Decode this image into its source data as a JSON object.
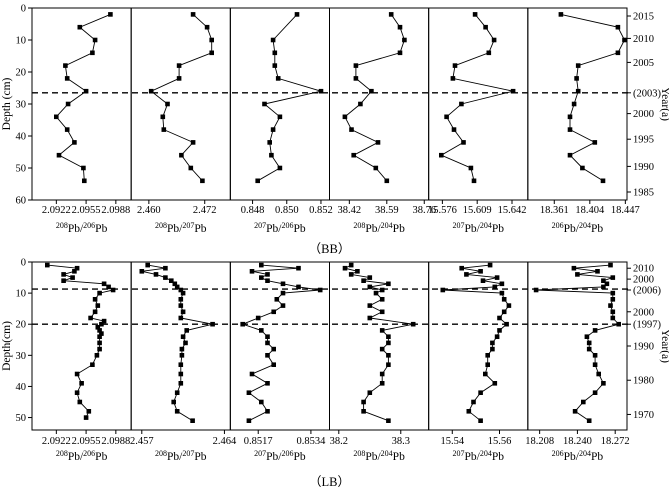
{
  "chart_data": [
    {
      "type": "line",
      "caption": "（BB）",
      "ylabel": "Depth (cm)",
      "y2label": "Year(a)",
      "ylim": [
        0,
        60
      ],
      "yticks": [
        "0",
        "10",
        "20",
        "30",
        "40",
        "50",
        "60"
      ],
      "year_ticks": [
        {
          "depth": 2.5,
          "label": "2015"
        },
        {
          "depth": 9.5,
          "label": "2010"
        },
        {
          "depth": 17.0,
          "label": "2005"
        },
        {
          "depth": 26.5,
          "label": "(2003)"
        },
        {
          "depth": 33.0,
          "label": "2000"
        },
        {
          "depth": 41.0,
          "label": "1995"
        },
        {
          "depth": 49.5,
          "label": "1990"
        },
        {
          "depth": 57.5,
          "label": "1985"
        }
      ],
      "reference_depths": [
        26.5
      ],
      "panels": [
        {
          "xlabel_main": "Pb",
          "xlabel_num": "208",
          "xlabel_den_prefix": "Pb",
          "xlabel_den": "206",
          "xlim": [
            2.0895,
            2.1005
          ],
          "xticks": [
            "2.0922",
            "2.0955",
            "2.0988"
          ],
          "depth": [
            2,
            6,
            10,
            14,
            18,
            22,
            26,
            30,
            34,
            38,
            42,
            46,
            50,
            54
          ],
          "values": [
            2.0982,
            2.0948,
            2.0965,
            2.0962,
            2.0932,
            2.0934,
            2.0955,
            2.0935,
            2.0922,
            2.0934,
            2.0942,
            2.0925,
            2.0952,
            2.0953
          ]
        },
        {
          "xlabel_num": "208",
          "xlabel_den": "207",
          "xlim": [
            2.4562,
            2.4775
          ],
          "xticks": [
            "2.460",
            "2.472"
          ],
          "depth": [
            2,
            6,
            10,
            14,
            18,
            22,
            26,
            30,
            34,
            38,
            42,
            46,
            50,
            54
          ],
          "values": [
            2.4695,
            2.4725,
            2.4735,
            2.4735,
            2.4665,
            2.4665,
            2.4605,
            2.464,
            2.463,
            2.4632,
            2.4695,
            2.467,
            2.469,
            2.4715
          ]
        },
        {
          "xlabel_num": "207",
          "xlabel_den": "206",
          "xlim": [
            0.8467,
            0.8525
          ],
          "xticks": [
            "0.848",
            "0.850",
            "0.852"
          ],
          "depth": [
            2,
            10,
            14,
            18,
            22,
            26,
            30,
            34,
            38,
            42,
            46,
            50,
            54
          ],
          "values": [
            0.8506,
            0.8492,
            0.8493,
            0.8493,
            0.8495,
            0.852,
            0.8487,
            0.8496,
            0.8492,
            0.849,
            0.8491,
            0.8496,
            0.8483
          ]
        },
        {
          "xlabel_num": "208",
          "xlabel_den": "204",
          "xlim": [
            38.33,
            38.78
          ],
          "xticks": [
            "38.42",
            "38.59",
            "38.76"
          ],
          "depth": [
            2,
            6,
            10,
            14,
            18,
            22,
            26,
            30,
            34,
            38,
            42,
            46,
            50,
            54
          ],
          "values": [
            38.61,
            38.65,
            38.67,
            38.65,
            38.45,
            38.45,
            38.52,
            38.47,
            38.4,
            38.43,
            38.55,
            38.44,
            38.54,
            38.59
          ]
        },
        {
          "xlabel_num": "207",
          "xlabel_den": "204",
          "xlim": [
            15.563,
            15.657
          ],
          "xticks": [
            "15.576",
            "15.609",
            "15.642"
          ],
          "depth": [
            2,
            6,
            10,
            14,
            18,
            22,
            26,
            30,
            34,
            38,
            42,
            46,
            50,
            54
          ],
          "values": [
            15.607,
            15.617,
            15.625,
            15.62,
            15.588,
            15.586,
            15.643,
            15.594,
            15.58,
            15.587,
            15.596,
            15.575,
            15.603,
            15.606
          ]
        },
        {
          "xlabel_num": "206",
          "xlabel_den": "204",
          "xlim": [
            18.329,
            18.449
          ],
          "xticks": [
            "18.361",
            "18.404",
            "18.447"
          ],
          "depth": [
            2,
            6,
            10,
            14,
            18,
            22,
            26,
            30,
            34,
            38,
            42,
            46,
            50,
            54
          ],
          "values": [
            18.369,
            18.438,
            18.446,
            18.438,
            18.39,
            18.388,
            18.39,
            18.385,
            18.38,
            18.38,
            18.41,
            18.38,
            18.395,
            18.42
          ]
        }
      ]
    },
    {
      "type": "line",
      "caption": "（LB）",
      "ylabel": "Depth(cm)",
      "y2label": "Year(a)",
      "ylim": [
        0,
        54
      ],
      "yticks": [
        "0",
        "10",
        "20",
        "30",
        "40",
        "50"
      ],
      "year_ticks": [
        {
          "depth": 2.0,
          "label": "2010"
        },
        {
          "depth": 5.5,
          "label": "2000"
        },
        {
          "depth": 9.0,
          "label": "(2006)"
        },
        {
          "depth": 20.0,
          "label": "(1997)"
        },
        {
          "depth": 16.0,
          "label": "2000"
        },
        {
          "depth": 27.0,
          "label": "1990"
        },
        {
          "depth": 38.0,
          "label": "1980"
        },
        {
          "depth": 49.0,
          "label": "1970"
        }
      ],
      "reference_depths": [
        8.7,
        20.0
      ],
      "panels": [
        {
          "xlabel_num": "208",
          "xlabel_den": "206",
          "xlim": [
            2.0895,
            2.1005
          ],
          "xticks": [
            "2.0922",
            "2.0955",
            "2.0988"
          ],
          "depth": [
            1,
            2,
            3,
            4,
            5,
            6,
            7,
            8,
            9,
            10,
            12,
            14,
            16,
            18,
            19,
            20,
            21,
            22,
            23,
            24,
            26,
            28,
            30,
            33,
            36,
            39,
            42,
            45,
            48,
            50
          ],
          "values": [
            2.0912,
            2.0945,
            2.0942,
            2.093,
            2.094,
            2.093,
            2.0975,
            2.098,
            2.0985,
            2.097,
            2.0965,
            2.0968,
            2.0965,
            2.096,
            2.0975,
            2.0972,
            2.0968,
            2.097,
            2.0972,
            2.097,
            2.097,
            2.097,
            2.0967,
            2.0962,
            2.0945,
            2.095,
            2.0945,
            2.0948,
            2.0958,
            2.0955
          ]
        },
        {
          "xlabel_num": "208",
          "xlabel_den": "207",
          "xlim": [
            2.4561,
            2.4645
          ],
          "xticks": [
            "2.457",
            "2.464"
          ],
          "depth": [
            1,
            2,
            3,
            4,
            5,
            6,
            7,
            8,
            9,
            10,
            12,
            14,
            16,
            18,
            20,
            22,
            24,
            26,
            28,
            30,
            33,
            36,
            39,
            42,
            45,
            48,
            51
          ],
          "values": [
            2.4575,
            2.459,
            2.457,
            2.4582,
            2.459,
            2.4595,
            2.4598,
            2.46,
            2.4603,
            2.4605,
            2.4603,
            2.4603,
            2.4605,
            2.4603,
            2.463,
            2.4608,
            2.4605,
            2.4607,
            2.4604,
            2.4604,
            2.4603,
            2.4603,
            2.4603,
            2.46,
            2.4597,
            2.46,
            2.4613
          ]
        },
        {
          "xlabel_num": "207",
          "xlabel_den": "206",
          "xlim": [
            0.8508,
            0.854
          ],
          "xticks": [
            "0.8517",
            "0.8534"
          ],
          "depth": [
            1,
            2,
            3,
            4,
            5,
            6,
            7,
            8,
            9,
            10,
            12,
            14,
            16,
            18,
            20,
            22,
            24,
            26,
            28,
            30,
            33,
            36,
            39,
            42,
            45,
            48,
            51
          ],
          "values": [
            0.8518,
            0.853,
            0.8515,
            0.852,
            0.8518,
            0.852,
            0.8525,
            0.853,
            0.8537,
            0.8525,
            0.8523,
            0.8525,
            0.8522,
            0.8517,
            0.8512,
            0.8518,
            0.852,
            0.852,
            0.8522,
            0.852,
            0.8522,
            0.8515,
            0.852,
            0.8514,
            0.8518,
            0.852,
            0.8514
          ]
        },
        {
          "xlabel_num": "208",
          "xlabel_den": "204",
          "xlim": [
            38.185,
            38.345
          ],
          "xticks": [
            "38.2",
            "38.3"
          ],
          "depth": [
            1,
            2,
            3,
            4,
            5,
            6,
            7,
            8,
            9,
            10,
            12,
            14,
            16,
            18,
            20,
            22,
            24,
            26,
            28,
            30,
            33,
            36,
            39,
            42,
            45,
            48,
            51
          ],
          "values": [
            38.22,
            38.21,
            38.23,
            38.22,
            38.25,
            38.24,
            38.28,
            38.25,
            38.27,
            38.26,
            38.27,
            38.25,
            38.27,
            38.25,
            38.32,
            38.27,
            38.28,
            38.28,
            38.27,
            38.28,
            38.28,
            38.27,
            38.27,
            38.25,
            38.24,
            38.24,
            38.28
          ]
        },
        {
          "xlabel_num": "207",
          "xlabel_den": "204",
          "xlim": [
            15.53,
            15.572
          ],
          "xticks": [
            "15.54",
            "15.56"
          ],
          "depth": [
            1,
            2,
            3,
            4,
            5,
            6,
            7,
            8,
            9,
            10,
            12,
            14,
            16,
            18,
            20,
            22,
            24,
            26,
            28,
            30,
            33,
            36,
            39,
            42,
            45,
            48,
            51
          ],
          "values": [
            15.556,
            15.544,
            15.552,
            15.546,
            15.559,
            15.553,
            15.561,
            15.558,
            15.536,
            15.561,
            15.562,
            15.564,
            15.562,
            15.56,
            15.563,
            15.56,
            15.559,
            15.557,
            15.557,
            15.555,
            15.555,
            15.554,
            15.558,
            15.552,
            15.549,
            15.547,
            15.552
          ]
        },
        {
          "xlabel_num": "206",
          "xlabel_den": "204",
          "xlim": [
            18.198,
            18.282
          ],
          "xticks": [
            "18.208",
            "18.240",
            "18.272"
          ],
          "depth": [
            1,
            2,
            3,
            4,
            5,
            6,
            7,
            8,
            9,
            10,
            12,
            14,
            16,
            18,
            20,
            22,
            24,
            26,
            28,
            30,
            33,
            36,
            39,
            42,
            45,
            48,
            51
          ],
          "values": [
            18.268,
            18.237,
            18.257,
            18.24,
            18.27,
            18.262,
            18.265,
            18.262,
            18.205,
            18.27,
            18.27,
            18.268,
            18.27,
            18.27,
            18.275,
            18.255,
            18.248,
            18.25,
            18.25,
            18.255,
            18.255,
            18.258,
            18.262,
            18.255,
            18.245,
            18.238,
            18.25
          ]
        }
      ]
    }
  ]
}
